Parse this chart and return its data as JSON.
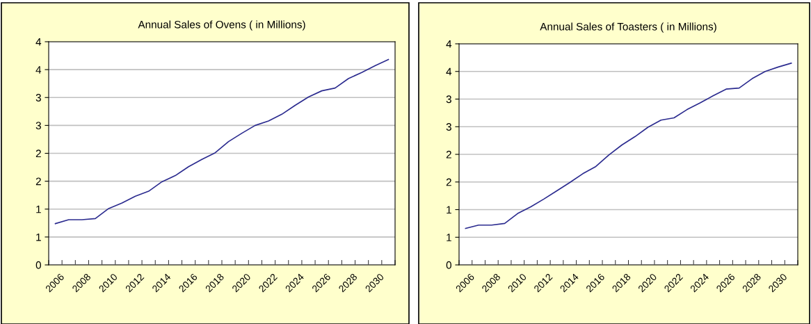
{
  "chart_data": [
    {
      "type": "line",
      "title": "Annual Sales of Ovens ( in Millions)",
      "categories": [
        "2006",
        null,
        "2008",
        null,
        "2010",
        null,
        "2012",
        null,
        "2014",
        null,
        "2016",
        null,
        "2018",
        null,
        "2020",
        null,
        "2022",
        null,
        "2024",
        null,
        "2026",
        null,
        "2028",
        null,
        "2030",
        null
      ],
      "series": [
        {
          "color": "#2b2b8f",
          "values": [
            0.74,
            0.81,
            0.81,
            0.83,
            1.01,
            1.11,
            1.23,
            1.32,
            1.49,
            1.6,
            1.76,
            1.89,
            2.01,
            2.21,
            2.36,
            2.5,
            2.58,
            2.7,
            2.86,
            3.01,
            3.12,
            3.17,
            3.34,
            3.45,
            3.57,
            3.68
          ]
        }
      ],
      "ylim": [
        0,
        4
      ],
      "yticks": [
        0,
        {
          "value": 0.5,
          "label": "1"
        },
        1,
        {
          "value": 1.5,
          "label": "2"
        },
        2,
        {
          "value": 2.5,
          "label": "3"
        },
        3,
        {
          "value": 3.5,
          "label": "4"
        },
        4
      ],
      "grid": "y",
      "legend": false,
      "marker": "none",
      "line_style": "solid"
    },
    {
      "type": "line",
      "title": "Annual Sales of Toasters ( in Millions)",
      "categories": [
        "2006",
        null,
        "2008",
        null,
        "2010",
        null,
        "2012",
        null,
        "2014",
        null,
        "2016",
        null,
        "2018",
        null,
        "2020",
        null,
        "2022",
        null,
        "2024",
        null,
        "2026",
        null,
        "2028",
        null,
        "2030",
        null
      ],
      "series": [
        {
          "color": "#2b2b8f",
          "values": [
            0.66,
            0.72,
            0.72,
            0.75,
            0.93,
            1.05,
            1.19,
            1.34,
            1.49,
            1.65,
            1.78,
            1.99,
            2.17,
            2.32,
            2.49,
            2.62,
            2.66,
            2.81,
            2.93,
            3.06,
            3.18,
            3.2,
            3.37,
            3.5,
            3.58,
            3.65
          ]
        }
      ],
      "ylim": [
        0,
        4
      ],
      "yticks": [
        0,
        {
          "value": 0.5,
          "label": "1"
        },
        1,
        {
          "value": 1.5,
          "label": "2"
        },
        2,
        {
          "value": 2.5,
          "label": "3"
        },
        3,
        {
          "value": 3.5,
          "label": "4"
        },
        4
      ],
      "grid": "y",
      "legend": false,
      "marker": "none",
      "line_style": "solid"
    }
  ]
}
